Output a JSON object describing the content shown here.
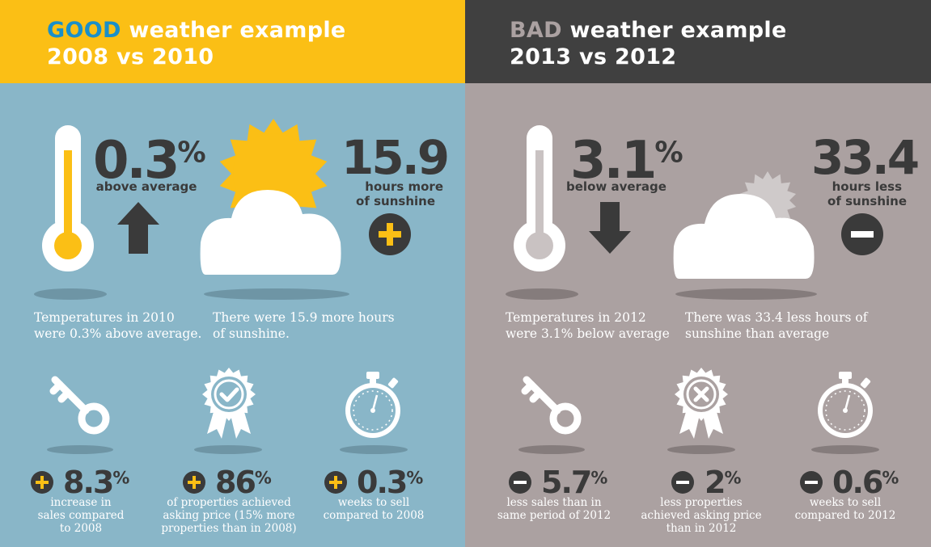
{
  "colors": {
    "yellow": "#fbbf15",
    "blue": "#89b6c8",
    "dark": "#404040",
    "taupe": "#aba1a1",
    "text_dark": "#3a3a3a",
    "white": "#ffffff"
  },
  "good": {
    "title_keyword": "GOOD",
    "title_rest": " weather example",
    "subtitle": "2008 vs 2010",
    "temp_value": "0.3",
    "temp_pct": "%",
    "temp_label": "above average",
    "sun_value": "15.9",
    "sun_label_1": "hours more",
    "sun_label_2": "of sunshine",
    "caption_temp_1": "Temperatures in 2010",
    "caption_temp_2": "were 0.3% above average.",
    "caption_sun_1": "There were 15.9 more hours",
    "caption_sun_2": "of sunshine.",
    "stats": [
      {
        "value": "8.3",
        "pct": "%",
        "label": [
          "increase in",
          "sales compared",
          "to 2008"
        ],
        "icon": "key-icon"
      },
      {
        "value": "86",
        "pct": "%",
        "label": [
          "of properties achieved",
          "asking price (15% more",
          "properties than in 2008)"
        ],
        "icon": "award-check-icon"
      },
      {
        "value": "0.3",
        "pct": "%",
        "label": [
          "weeks to sell",
          "compared to 2008"
        ],
        "icon": "stopwatch-icon"
      }
    ]
  },
  "bad": {
    "title_keyword": "BAD",
    "title_rest": " weather example",
    "subtitle": "2013 vs 2012",
    "temp_value": "3.1",
    "temp_pct": "%",
    "temp_label": "below average",
    "sun_value": "33.4",
    "sun_label_1": "hours less",
    "sun_label_2": "of sunshine",
    "caption_temp_1": "Temperatures in 2012",
    "caption_temp_2": "were 3.1% below average",
    "caption_sun_1": "There was 33.4 less hours of",
    "caption_sun_2": "sunshine than average",
    "stats": [
      {
        "value": "5.7",
        "pct": "%",
        "label": [
          "less sales than in",
          "same period of 2012"
        ],
        "icon": "key-icon"
      },
      {
        "value": "2",
        "pct": "%",
        "label": [
          "less properties",
          "achieved asking price",
          "than in 2012"
        ],
        "icon": "award-cross-icon"
      },
      {
        "value": "0.6",
        "pct": "%",
        "label": [
          "weeks to sell",
          "compared to 2012"
        ],
        "icon": "stopwatch-icon"
      }
    ]
  }
}
